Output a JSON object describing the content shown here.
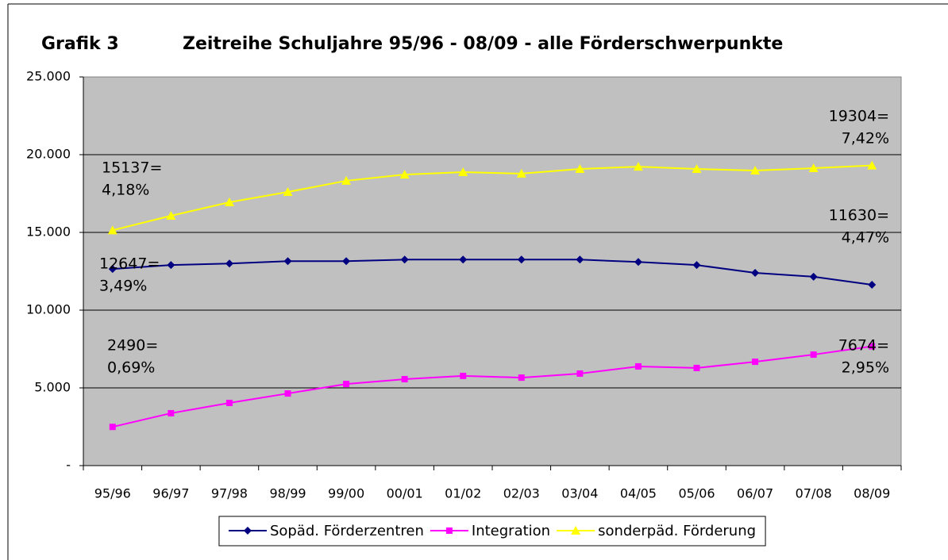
{
  "chart_data": {
    "type": "line",
    "figure_label": "Grafik 3",
    "title": "Zeitreihe Schuljahre 95/96 - 08/09 - alle Förderschwerpunkte",
    "categories": [
      "95/96",
      "96/97",
      "97/98",
      "98/99",
      "99/00",
      "00/01",
      "01/02",
      "02/03",
      "03/04",
      "04/05",
      "05/06",
      "06/07",
      "07/08",
      "08/09"
    ],
    "series": [
      {
        "name": "Sopäd. Förderzentren",
        "color": "#000080",
        "marker": "diamond",
        "values": [
          12647,
          12900,
          13000,
          13150,
          13150,
          13250,
          13250,
          13250,
          13250,
          13100,
          12900,
          12400,
          12150,
          11630
        ]
      },
      {
        "name": "Integration",
        "color": "#ff00ff",
        "marker": "square",
        "values": [
          2490,
          3370,
          4030,
          4640,
          5250,
          5560,
          5770,
          5660,
          5920,
          6380,
          6280,
          6680,
          7140,
          7674
        ]
      },
      {
        "name": "sonderpäd. Förderung",
        "color": "#ffff00",
        "marker": "triangle",
        "values": [
          15137,
          16070,
          16940,
          17600,
          18320,
          18720,
          18880,
          18780,
          19080,
          19230,
          19080,
          18980,
          19130,
          19304
        ]
      }
    ],
    "ylim": [
      0,
      25000
    ],
    "yticks": [
      {
        "value": 0,
        "label": "-"
      },
      {
        "value": 5000,
        "label": "5.000"
      },
      {
        "value": 10000,
        "label": "10.000"
      },
      {
        "value": 15000,
        "label": "15.000"
      },
      {
        "value": 20000,
        "label": "20.000"
      },
      {
        "value": 25000,
        "label": "25.000"
      }
    ],
    "grid": true,
    "legend": "bottom",
    "annotations": [
      [
        "15137=",
        "4,18%"
      ],
      [
        "12647=",
        "3,49%"
      ],
      [
        "2490=",
        "0,69%"
      ],
      [
        "19304=",
        "7,42%"
      ],
      [
        "11630=",
        "4,47%"
      ],
      [
        "7674=",
        "2,95%"
      ]
    ]
  }
}
